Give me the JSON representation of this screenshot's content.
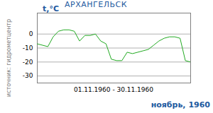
{
  "chart_data": {
    "type": "line",
    "title": "АРХАНГЕЛЬСК",
    "subtitle": "ноябрь, 1960",
    "ylabel": "t,°C",
    "xlabel": "01.11.1960 - 30.11.1960",
    "annotations": [
      "источник: гидрометцентр"
    ],
    "x": [
      1,
      2,
      3,
      4,
      5,
      6,
      7,
      8,
      9,
      10,
      11,
      12,
      13,
      14,
      15,
      16,
      17,
      18,
      19,
      20,
      21,
      22,
      23,
      24,
      25,
      26,
      27,
      28,
      29,
      30
    ],
    "values": [
      -7,
      -8,
      -9,
      -2,
      2,
      3,
      3,
      2,
      -5,
      -1,
      -1,
      0,
      -5,
      -7,
      -18,
      -19,
      -19,
      -13,
      -14,
      -13,
      -12,
      -11,
      -8,
      -5,
      -3,
      -2,
      -2,
      -3,
      -19,
      -20
    ],
    "color": "#22aa22",
    "xlim": [
      1,
      30
    ],
    "ylim": [
      -35,
      15
    ],
    "yticks": [
      0,
      -10,
      -20,
      -30
    ],
    "grid": true,
    "tick_labels": "y"
  }
}
